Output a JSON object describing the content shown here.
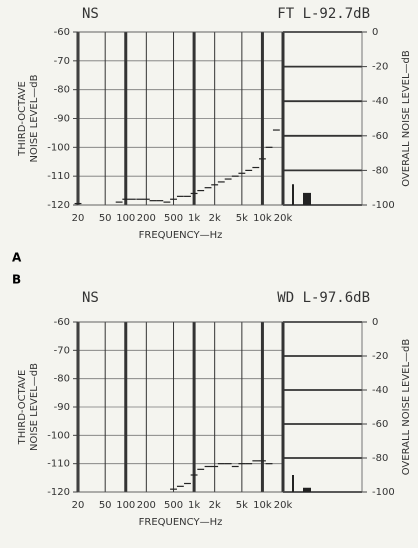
{
  "chart_data": [
    {
      "type": "step",
      "panel": "A",
      "title_left": "NS",
      "title_right": "FT L-92.7dB",
      "ylabel": [
        "THIRD-OCTAVE",
        "NOISE LEVEL—dB"
      ],
      "y2label": "OVERALL NOISE LEVEL—dB",
      "xlabel": "FREQUENCY—Hz",
      "log_x": true,
      "grid": true,
      "color": "#222222",
      "xlim": [
        20,
        20000
      ],
      "xticks": [
        20,
        50,
        100,
        200,
        500,
        {
          "value": 1000,
          "label": "1k"
        },
        {
          "value": 2000,
          "label": "2k"
        },
        {
          "value": 5000,
          "label": "5k"
        },
        {
          "value": 10000,
          "label": "10k"
        },
        {
          "value": 20000,
          "label": "20k"
        }
      ],
      "ylim": [
        -120,
        -60
      ],
      "yticks": [
        -120,
        -110,
        -100,
        -90,
        -80,
        -70,
        -60
      ],
      "y2lim": [
        -100,
        0
      ],
      "y2ticks": [
        -100,
        -80,
        -60,
        -40,
        -20,
        0
      ],
      "x": [
        20,
        25,
        31.5,
        40,
        50,
        63,
        80,
        100,
        125,
        160,
        200,
        250,
        315,
        400,
        500,
        630,
        800,
        1000,
        1250,
        1600,
        2000,
        2500,
        3150,
        4000,
        5000,
        6300,
        8000,
        10000,
        12500,
        16000,
        20000
      ],
      "values": [
        -119.5,
        null,
        null,
        null,
        null,
        null,
        -119,
        -118,
        -118,
        -118,
        -118,
        -118.5,
        -118.5,
        -119,
        -118,
        -117,
        -117,
        -116,
        -115,
        -114,
        -113,
        -112,
        -111,
        -110,
        -109,
        -108,
        -107,
        -104,
        -100,
        -94,
        null
      ],
      "overall": [
        -88,
        -93
      ]
    },
    {
      "type": "step",
      "panel": "B",
      "title_left": "NS",
      "title_right": "WD L-97.6dB",
      "ylabel": [
        "THIRD-OCTAVE",
        "NOISE LEVEL—dB"
      ],
      "y2label": "OVERALL NOISE LEVEL—dB",
      "xlabel": "FREQUENCY—Hz",
      "log_x": true,
      "grid": true,
      "color": "#222222",
      "xlim": [
        20,
        20000
      ],
      "xticks": [
        20,
        50,
        100,
        200,
        500,
        {
          "value": 1000,
          "label": "1k"
        },
        {
          "value": 2000,
          "label": "2k"
        },
        {
          "value": 5000,
          "label": "5k"
        },
        {
          "value": 10000,
          "label": "10k"
        },
        {
          "value": 20000,
          "label": "20k"
        }
      ],
      "ylim": [
        -120,
        -60
      ],
      "yticks": [
        -120,
        -110,
        -100,
        -90,
        -80,
        -70,
        -60
      ],
      "y2lim": [
        -100,
        0
      ],
      "y2ticks": [
        -100,
        -80,
        -60,
        -40,
        -20,
        0
      ],
      "x": [
        20,
        25,
        31.5,
        40,
        50,
        63,
        80,
        100,
        125,
        160,
        200,
        250,
        315,
        400,
        500,
        630,
        800,
        1000,
        1250,
        1600,
        2000,
        2500,
        3150,
        4000,
        5000,
        6300,
        8000,
        10000,
        12500,
        16000,
        20000
      ],
      "values": [
        null,
        null,
        null,
        null,
        null,
        null,
        null,
        null,
        null,
        null,
        null,
        null,
        null,
        null,
        -119,
        -118,
        -117,
        -114,
        -112,
        -111,
        -111,
        -110,
        -110,
        -111,
        -110,
        -110,
        -109,
        -109,
        -110,
        null,
        null
      ],
      "overall": [
        -90,
        -97.5
      ]
    }
  ]
}
